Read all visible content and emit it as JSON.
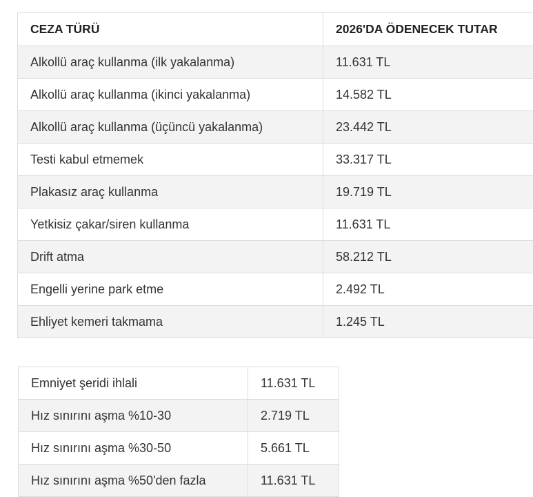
{
  "table1": {
    "headers": [
      "CEZA TÜRÜ",
      "2026'DA ÖDENECEK TUTAR"
    ],
    "rows": [
      [
        "Alkollü araç kullanma (ilk yakalanma)",
        "11.631 TL"
      ],
      [
        "Alkollü araç kullanma (ikinci yakalanma)",
        "14.582 TL"
      ],
      [
        "Alkollü araç kullanma (üçüncü yakalanma)",
        "23.442 TL"
      ],
      [
        "Testi kabul etmemek",
        "33.317 TL"
      ],
      [
        "Plakasız araç kullanma",
        "19.719 TL"
      ],
      [
        "Yetkisiz çakar/siren kullanma",
        "11.631 TL"
      ],
      [
        "Drift atma",
        "58.212 TL"
      ],
      [
        "Engelli yerine park etme",
        "2.492 TL"
      ],
      [
        "Ehliyet kemeri takmama",
        "1.245 TL"
      ]
    ]
  },
  "table2": {
    "rows": [
      [
        "Emniyet şeridi ihlali",
        "11.631 TL"
      ],
      [
        "Hız sınırını aşma %10-30",
        "2.719 TL"
      ],
      [
        "Hız sınırını aşma %30-50",
        "5.661 TL"
      ],
      [
        "Hız sınırını aşma %50'den fazla",
        "11.631 TL"
      ]
    ]
  }
}
